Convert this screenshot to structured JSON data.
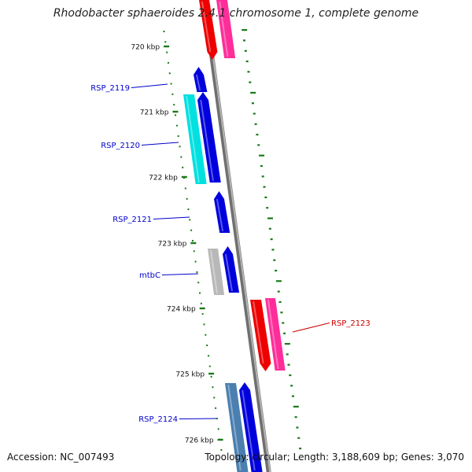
{
  "title": "Rhodobacter sphaeroides 2.4.1 chromosome 1, complete genome",
  "footer": {
    "accession": "Accession: NC_007493",
    "summary": "Topology: circular; Length: 3,188,609 bp; Genes: 3,070"
  },
  "ticks": [
    {
      "label": "720 kbp"
    },
    {
      "label": "721 kbp"
    },
    {
      "label": "722 kbp"
    },
    {
      "label": "723 kbp"
    },
    {
      "label": "724 kbp"
    },
    {
      "label": "725 kbp"
    },
    {
      "label": "726 kbp"
    }
  ],
  "gene_labels": [
    {
      "text": "RSP_2119",
      "color": "#0000cc"
    },
    {
      "text": "RSP_2120",
      "color": "#0000cc"
    },
    {
      "text": "RSP_2121",
      "color": "#0000cc"
    },
    {
      "text": "mtbC",
      "color": "#0000cc"
    },
    {
      "text": "RSP_2123",
      "color": "#cc0000"
    },
    {
      "text": "RSP_2124",
      "color": "#0000cc"
    }
  ],
  "colors": {
    "backbone": "#8a8a8a",
    "tick_green": "#1a7a1a",
    "cds_blue": "#0000dd",
    "cds_cyan": "#00e0e0",
    "cds_red": "#ee0000",
    "cds_pink": "#ff2d9a",
    "cds_grey": "#b8b8b8",
    "cds_steel": "#4a7fb0"
  }
}
